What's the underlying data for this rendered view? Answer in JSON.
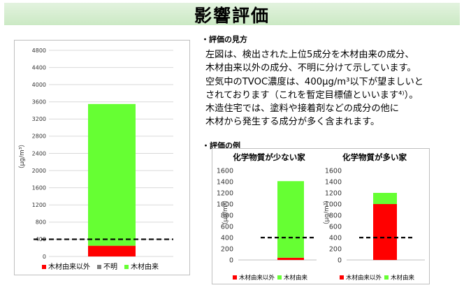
{
  "page": {
    "title": "影響評価",
    "section_view": "・評価の見方",
    "description_lines": [
      "左図は、検出された上位5成分を木材由来の成分、",
      "木材由来以外の成分、不明に分けて示しています。",
      "空気中のTVOC濃度は、400μg/m³以下が望ましいと",
      "されております（これを暫定目標値といいます⁴⁾）。",
      "木造住宅では、塗料や接着剤などの成分の他に",
      "木材から発生する成分が多く含まれます。"
    ],
    "section_example": "・評価の例"
  },
  "colors": {
    "non_wood": "#ff0000",
    "unknown": "#808080",
    "wood": "#66ff33",
    "guide_line": "#000000",
    "title_band": "#cfeac8"
  },
  "chart_data": [
    {
      "type": "bar",
      "stacked": true,
      "title": "",
      "ylabel": "（μg/m³）",
      "ylim": [
        0,
        4800
      ],
      "yticks": [
        0,
        400,
        800,
        1200,
        1600,
        2000,
        2400,
        2800,
        3200,
        3600,
        4000,
        4400,
        4800
      ],
      "grid": true,
      "legend_position": "bottom",
      "reference_line": 400,
      "categories": [
        ""
      ],
      "series": [
        {
          "name": "木材由来以外",
          "values": [
            250
          ],
          "color": "#ff0000"
        },
        {
          "name": "不明",
          "values": [
            0
          ],
          "color": "#808080"
        },
        {
          "name": "木材由来",
          "values": [
            3300
          ],
          "color": "#66ff33"
        }
      ]
    },
    {
      "type": "bar",
      "stacked": true,
      "title": "化学物質が少ない家",
      "ylabel": "（μg/m³）",
      "ylim": [
        0,
        1600
      ],
      "yticks": [
        0,
        200,
        400,
        600,
        800,
        1000,
        1200,
        1400,
        1600
      ],
      "grid": false,
      "legend_position": "bottom",
      "reference_line": 400,
      "categories": [
        ""
      ],
      "series": [
        {
          "name": "木材由来以外",
          "values": [
            40
          ],
          "color": "#ff0000"
        },
        {
          "name": "木材由来",
          "values": [
            1370
          ],
          "color": "#66ff33"
        }
      ]
    },
    {
      "type": "bar",
      "stacked": true,
      "title": "化学物質が多い家",
      "ylabel": "（μg/m³）",
      "ylim": [
        0,
        1600
      ],
      "yticks": [
        0,
        200,
        400,
        600,
        800,
        1000,
        1200,
        1400,
        1600
      ],
      "grid": false,
      "legend_position": "bottom",
      "reference_line": 400,
      "categories": [
        ""
      ],
      "series": [
        {
          "name": "木材由来以外",
          "values": [
            1000
          ],
          "color": "#ff0000"
        },
        {
          "name": "木材由来",
          "values": [
            200
          ],
          "color": "#66ff33"
        }
      ]
    }
  ]
}
